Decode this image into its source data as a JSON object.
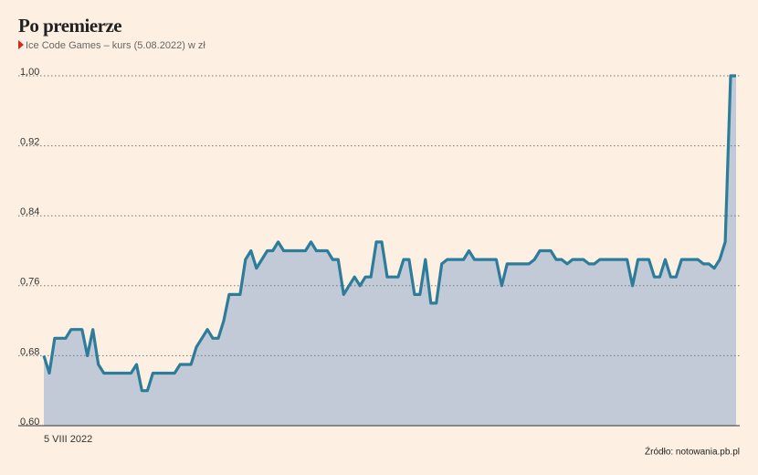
{
  "chart_data": {
    "type": "area",
    "title": "Po premierze",
    "subtitle": "Ice Code Games – kurs (5.08.2022) w zł",
    "source": "Źródło: notowania.pb.pl",
    "color": "#2d7d9a",
    "fill": "#c2cad8",
    "grid": true,
    "ylim": [
      0.6,
      1.0
    ],
    "yticks": [
      {
        "value": 0.6,
        "label": "0,60"
      },
      {
        "value": 0.68,
        "label": "0,68"
      },
      {
        "value": 0.76,
        "label": "0,76"
      },
      {
        "value": 0.84,
        "label": "0,84"
      },
      {
        "value": 0.92,
        "label": "0,92"
      },
      {
        "value": 1.0,
        "label": "1,00"
      }
    ],
    "categories": [
      "5 VIII 2022",
      null,
      null,
      null,
      null,
      null,
      null,
      null,
      null,
      null,
      null,
      null,
      null,
      null,
      null,
      null,
      null,
      null,
      null,
      null,
      null,
      null,
      null,
      null,
      null,
      null,
      null,
      null,
      null,
      null,
      null,
      null,
      null,
      null,
      null,
      null,
      null,
      null,
      null,
      null,
      null,
      null,
      null,
      null,
      null,
      null,
      null,
      null,
      null,
      null,
      null,
      null,
      null,
      null,
      null,
      null,
      null,
      null,
      null,
      null,
      null,
      null,
      null,
      null,
      null,
      null,
      null,
      null,
      null,
      null,
      null,
      null,
      null,
      null,
      null,
      null,
      null,
      null,
      null,
      null,
      null,
      null,
      null,
      null,
      null,
      null,
      null,
      null,
      null,
      null,
      null,
      null,
      null,
      null,
      null,
      null,
      null,
      null,
      null,
      null,
      null,
      null,
      null,
      null,
      null,
      null,
      null,
      null,
      null,
      null,
      null,
      null,
      null,
      null,
      null,
      null,
      null,
      null,
      null,
      null,
      null,
      null,
      null,
      null,
      null,
      null,
      null,
      null
    ],
    "values": [
      0.68,
      0.66,
      0.7,
      0.7,
      0.7,
      0.71,
      0.71,
      0.71,
      0.68,
      0.71,
      0.67,
      0.66,
      0.66,
      0.66,
      0.66,
      0.66,
      0.66,
      0.67,
      0.64,
      0.64,
      0.66,
      0.66,
      0.66,
      0.66,
      0.66,
      0.67,
      0.67,
      0.67,
      0.69,
      0.7,
      0.71,
      0.7,
      0.7,
      0.72,
      0.75,
      0.75,
      0.75,
      0.79,
      0.8,
      0.78,
      0.79,
      0.8,
      0.8,
      0.81,
      0.8,
      0.8,
      0.8,
      0.8,
      0.8,
      0.81,
      0.8,
      0.8,
      0.8,
      0.79,
      0.79,
      0.75,
      0.76,
      0.77,
      0.76,
      0.77,
      0.77,
      0.81,
      0.81,
      0.77,
      0.77,
      0.77,
      0.79,
      0.79,
      0.75,
      0.75,
      0.79,
      0.74,
      0.74,
      0.785,
      0.79,
      0.79,
      0.79,
      0.79,
      0.8,
      0.79,
      0.79,
      0.79,
      0.79,
      0.79,
      0.76,
      0.785,
      0.785,
      0.785,
      0.785,
      0.785,
      0.79,
      0.8,
      0.8,
      0.8,
      0.79,
      0.79,
      0.785,
      0.79,
      0.79,
      0.79,
      0.785,
      0.785,
      0.79,
      0.79,
      0.79,
      0.79,
      0.79,
      0.79,
      0.76,
      0.79,
      0.79,
      0.79,
      0.77,
      0.77,
      0.79,
      0.77,
      0.77,
      0.79,
      0.79,
      0.79,
      0.79,
      0.785,
      0.785,
      0.78,
      0.79,
      0.81,
      1.0,
      1.0
    ]
  }
}
